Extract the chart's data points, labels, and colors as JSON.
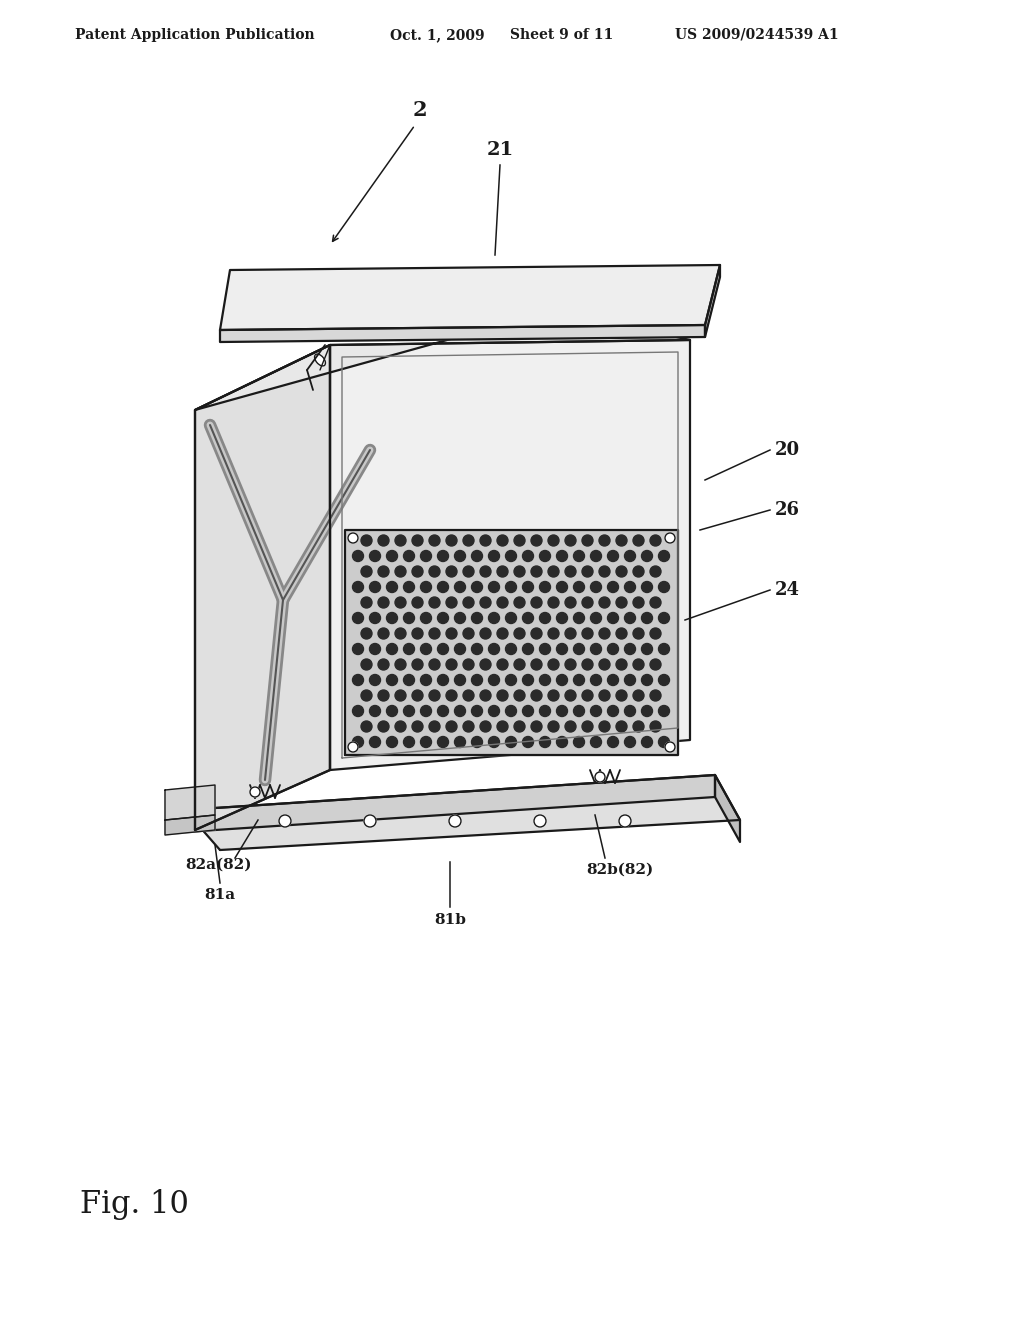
{
  "bg_color": "#ffffff",
  "line_color": "#1a1a1a",
  "header_text": "Patent Application Publication",
  "header_date": "Oct. 1, 2009",
  "header_sheet": "Sheet 9 of 11",
  "header_patent": "US 2009/0244539 A1",
  "fig_label": "Fig. 10",
  "body_front_fill": "#f0f0f0",
  "body_left_fill": "#e0e0e0",
  "body_top_fill": "#e8e8e8",
  "lid_fill": "#eeeeee",
  "lid_side_fill": "#d8d8d8",
  "grid_fill": "#cccccc",
  "base_top_fill": "#e0e0e0",
  "base_front_fill": "#d0d0d0",
  "base_side_fill": "#c0c0c0",
  "dot_color": "#2a2a2a",
  "lw_main": 1.6,
  "lw_thin": 1.0,
  "lw_ann": 1.1
}
